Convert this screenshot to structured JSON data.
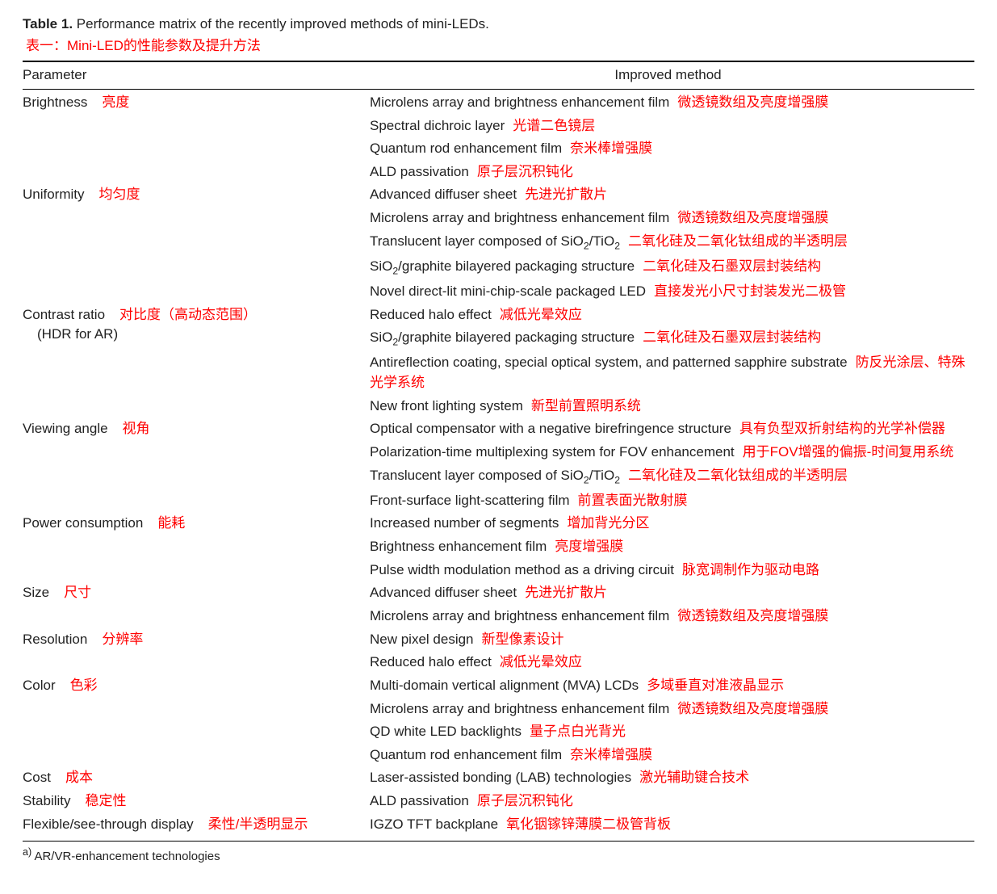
{
  "title_prefix": "Table 1.",
  "title_rest": " Performance matrix of the recently improved methods of mini-LEDs.",
  "subtitle_cn": "表一：Mini-LED的性能参数及提升方法",
  "header_parameter": "Parameter",
  "header_method": "Improved method",
  "footnote": "a) AR/VR-enhancement technologies",
  "colors": {
    "text": "#222222",
    "annotation": "#ff0000",
    "rule": "#000000",
    "background": "#ffffff"
  },
  "sections": [
    {
      "param_en": "Brightness",
      "param_cn": "亮度",
      "methods": [
        {
          "en": "Microlens array and brightness enhancement film",
          "cn": "微透镜数组及亮度增强膜"
        },
        {
          "en": "Spectral dichroic layer",
          "cn": "光谱二色镜层"
        },
        {
          "en": "Quantum rod enhancement film",
          "cn": "奈米棒增强膜"
        },
        {
          "en": "ALD passivation",
          "cn": "原子层沉积钝化"
        }
      ]
    },
    {
      "param_en": "Uniformity",
      "param_cn": "均匀度",
      "methods": [
        {
          "en": "Advanced diffuser sheet",
          "cn": "先进光扩散片"
        },
        {
          "en": "Microlens array and brightness enhancement film",
          "cn": "微透镜数组及亮度增强膜"
        },
        {
          "en_html": "Translucent layer composed of SiO<sub>2</sub>/TiO<sub>2</sub>",
          "cn": "二氧化硅及二氧化钛组成的半透明层"
        },
        {
          "en_html": "SiO<sub>2</sub>/graphite bilayered packaging structure",
          "cn": "二氧化硅及石墨双层封装结构"
        },
        {
          "en": "Novel direct-lit mini-chip-scale packaged LED",
          "cn": "直接发光小尺寸封装发光二极管"
        }
      ]
    },
    {
      "param_en": "Contrast ratio",
      "param_cn": "对比度（高动态范围）",
      "param_sub": "(HDR for AR)",
      "methods": [
        {
          "en": "Reduced halo effect",
          "cn": "减低光晕效应"
        },
        {
          "en_html": "SiO<sub>2</sub>/graphite bilayered packaging structure",
          "cn": "二氧化硅及石墨双层封装结构"
        },
        {
          "en": "Antireflection coating, special optical system, and patterned sapphire substrate",
          "cn": "防反光涂层、特殊光学系统"
        },
        {
          "en": "New front lighting system",
          "cn": "新型前置照明系统"
        }
      ]
    },
    {
      "param_en": "Viewing angle",
      "param_cn": "视角",
      "methods": [
        {
          "en": "Optical compensator with a negative birefringence structure",
          "cn": "具有负型双折射结构的光学补偿器"
        },
        {
          "en": "Polarization-time multiplexing system for FOV enhancement",
          "cn": "用于FOV增强的偏振-时间复用系统"
        },
        {
          "en_html": "Translucent layer composed of SiO<sub>2</sub>/TiO<sub>2</sub>",
          "cn": "二氧化硅及二氧化钛组成的半透明层"
        },
        {
          "en": "Front-surface light-scattering film",
          "cn": "前置表面光散射膜"
        }
      ]
    },
    {
      "param_en": "Power consumption",
      "param_cn": "能耗",
      "methods": [
        {
          "en": "Increased number of segments",
          "cn": "增加背光分区"
        },
        {
          "en": "Brightness enhancement film",
          "cn": "亮度增强膜"
        },
        {
          "en": "Pulse width modulation method as a driving circuit",
          "cn": "脉宽调制作为驱动电路"
        }
      ]
    },
    {
      "param_en": "Size",
      "param_cn": "尺寸",
      "methods": [
        {
          "en": "Advanced diffuser sheet",
          "cn": "先进光扩散片"
        },
        {
          "en": "Microlens array and brightness enhancement film",
          "cn": "微透镜数组及亮度增强膜"
        }
      ]
    },
    {
      "param_en": "Resolution",
      "param_cn": "分辨率",
      "methods": [
        {
          "en": "New pixel design",
          "cn": "新型像素设计"
        },
        {
          "en": "Reduced halo effect",
          "cn": "减低光晕效应"
        }
      ]
    },
    {
      "param_en": "Color",
      "param_cn": "色彩",
      "methods": [
        {
          "en": "Multi-domain vertical alignment (MVA) LCDs",
          "cn": "多域垂直对准液晶显示"
        },
        {
          "en": "Microlens array and brightness enhancement film",
          "cn": "微透镜数组及亮度增强膜"
        },
        {
          "en": "QD white LED backlights",
          "cn": "量子点白光背光"
        },
        {
          "en": "Quantum rod enhancement film",
          "cn": "奈米棒增强膜"
        }
      ]
    },
    {
      "param_en": "Cost",
      "param_cn": "成本",
      "methods": [
        {
          "en": "Laser-assisted bonding (LAB) technologies",
          "cn": "激光辅助键合技术"
        }
      ]
    },
    {
      "param_en": "Stability",
      "param_cn": "稳定性",
      "methods": [
        {
          "en": "ALD passivation",
          "cn": "原子层沉积钝化"
        }
      ]
    },
    {
      "param_en": "Flexible/see-through display",
      "param_cn": "柔性/半透明显示",
      "methods": [
        {
          "en": "IGZO TFT backplane",
          "cn": "氧化铟镓锌薄膜二极管背板"
        }
      ]
    }
  ]
}
